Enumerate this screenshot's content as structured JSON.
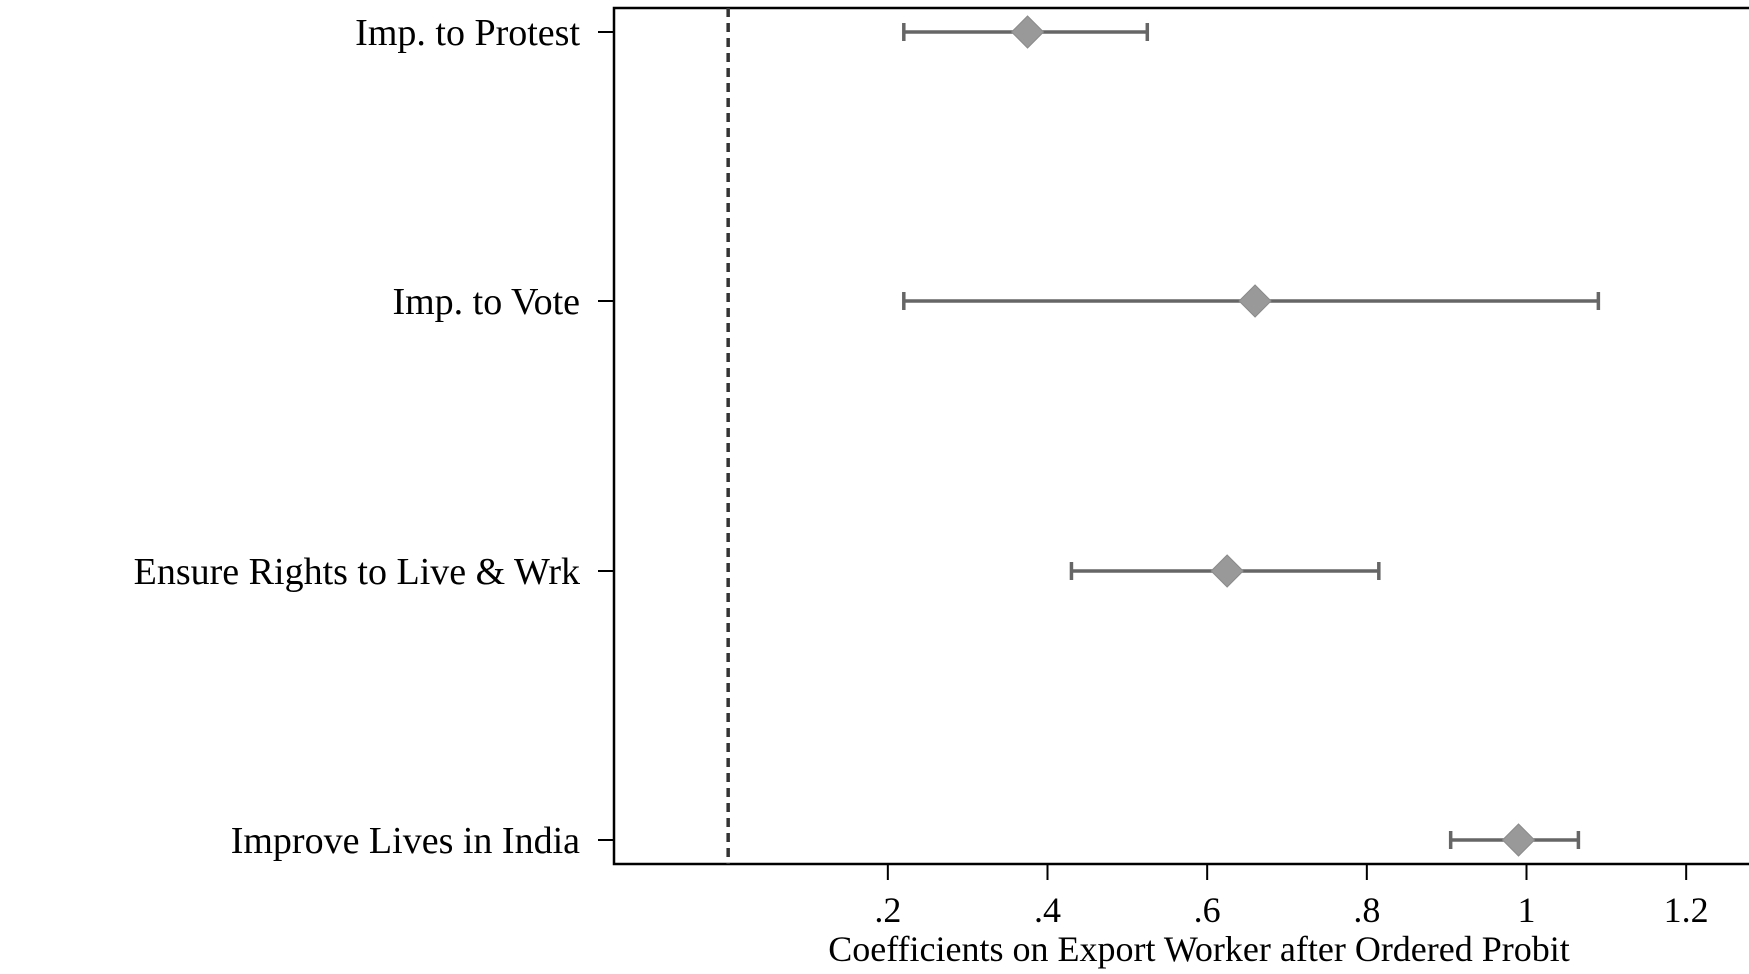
{
  "chart_data": {
    "type": "coefficient-plot",
    "title": "",
    "xlabel": "Coefficients on Export Worker after Ordered Probit",
    "ylabel": "",
    "xlim": [
      -0.143,
      1.31
    ],
    "xticks": [
      0.2,
      0.4,
      0.6,
      0.8,
      1.0,
      1.2
    ],
    "xtick_labels": [
      ".2",
      ".4",
      ".6",
      ".8",
      "1",
      "1.2"
    ],
    "reference_line": {
      "x": 0,
      "style": "dashed"
    },
    "grid": false,
    "legend": "none",
    "marker_color": "#999999",
    "ci_color": "#666666",
    "categories": [
      "Imp. to Protest",
      "Imp. to Vote",
      "Ensure Rights to Live & Wrk",
      "Improve Lives in India"
    ],
    "points": [
      {
        "estimate": 0.375,
        "ci_low": 0.22,
        "ci_high": 0.525
      },
      {
        "estimate": 0.66,
        "ci_low": 0.22,
        "ci_high": 1.09
      },
      {
        "estimate": 0.625,
        "ci_low": 0.43,
        "ci_high": 0.815
      },
      {
        "estimate": 0.99,
        "ci_low": 0.905,
        "ci_high": 1.065
      }
    ]
  }
}
